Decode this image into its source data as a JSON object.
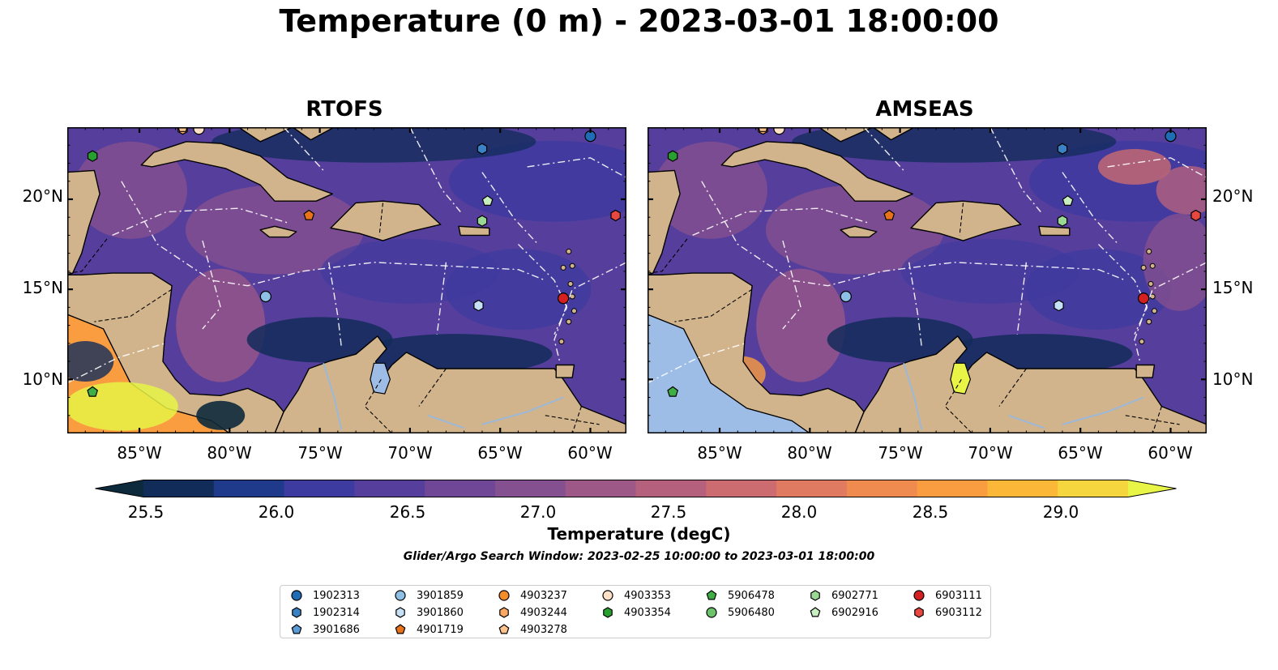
{
  "title": "Temperature (0 m) - 2023-03-01 18:00:00",
  "panels": [
    {
      "title": "RTOFS",
      "model": "rtofs"
    },
    {
      "title": "AMSEAS",
      "model": "amseas"
    }
  ],
  "map_extent": {
    "lon": [
      -89,
      -58
    ],
    "lat": [
      7,
      24
    ]
  },
  "lat_ticks": [
    "20°N",
    "15°N",
    "10°N"
  ],
  "lon_ticks": [
    "85°W",
    "80°W",
    "75°W",
    "70°W",
    "65°W",
    "60°W"
  ],
  "colorbar": {
    "label": "Temperature (degC)",
    "ticks": [
      "25.5",
      "26.0",
      "26.5",
      "27.0",
      "27.5",
      "28.0",
      "28.5",
      "29.0"
    ],
    "range": [
      25.25,
      29.5
    ],
    "colors": [
      "#0d2a3c",
      "#122c5a",
      "#1f3a8a",
      "#3d3aa0",
      "#563f9c",
      "#6f4796",
      "#85508f",
      "#9d5887",
      "#b5617d",
      "#cc6b70",
      "#e07a60",
      "#ef8b4f",
      "#f99d40",
      "#fbb738",
      "#f6d63e",
      "#e8f547"
    ]
  },
  "search_window": "Glider/Argo Search Window: 2023-02-25 10:00:00 to 2023-03-01 18:00:00",
  "floats": [
    {
      "id": "1902313",
      "color": "#1f6eb5",
      "shape": "circle",
      "lon": -60.0,
      "lat": 23.5
    },
    {
      "id": "1902314",
      "color": "#3b82c4",
      "shape": "hexagon",
      "lon": -66.0,
      "lat": 22.8
    },
    {
      "id": "3901686",
      "color": "#5a9bd5",
      "shape": "pentagon"
    },
    {
      "id": "3901859",
      "color": "#8ec0e6",
      "shape": "circle",
      "lon": -78.0,
      "lat": 14.6
    },
    {
      "id": "3901860",
      "color": "#c6e0f5",
      "shape": "hexagon",
      "lon": -66.2,
      "lat": 14.1
    },
    {
      "id": "4901719",
      "color": "#e8731a",
      "shape": "pentagon",
      "lon": -75.6,
      "lat": 19.1
    },
    {
      "id": "4903237",
      "color": "#f58c2a",
      "shape": "circle"
    },
    {
      "id": "4903244",
      "color": "#fba864",
      "shape": "hexagon",
      "lon": -82.6,
      "lat": 23.9
    },
    {
      "id": "4903278",
      "color": "#fdc38f",
      "shape": "pentagon",
      "lon": -82.6,
      "lat": 24.0
    },
    {
      "id": "4903353",
      "color": "#fde0c5",
      "shape": "circle",
      "lon": -81.7,
      "lat": 23.9
    },
    {
      "id": "4903354",
      "color": "#27a02f",
      "shape": "hexagon",
      "lon": -87.6,
      "lat": 22.4
    },
    {
      "id": "5906478",
      "color": "#3fae44",
      "shape": "pentagon",
      "lon": -87.6,
      "lat": 9.3
    },
    {
      "id": "5906480",
      "color": "#6cc46a",
      "shape": "circle"
    },
    {
      "id": "6902771",
      "color": "#9ad994",
      "shape": "hexagon",
      "lon": -66.0,
      "lat": 18.8
    },
    {
      "id": "6902916",
      "color": "#c8efbf",
      "shape": "pentagon",
      "lon": -65.7,
      "lat": 19.9
    },
    {
      "id": "6903111",
      "color": "#d42020",
      "shape": "circle",
      "lon": -61.5,
      "lat": 14.5
    },
    {
      "id": "6903112",
      "color": "#e8483f",
      "shape": "hexagon",
      "lon": -58.6,
      "lat": 19.1
    }
  ]
}
